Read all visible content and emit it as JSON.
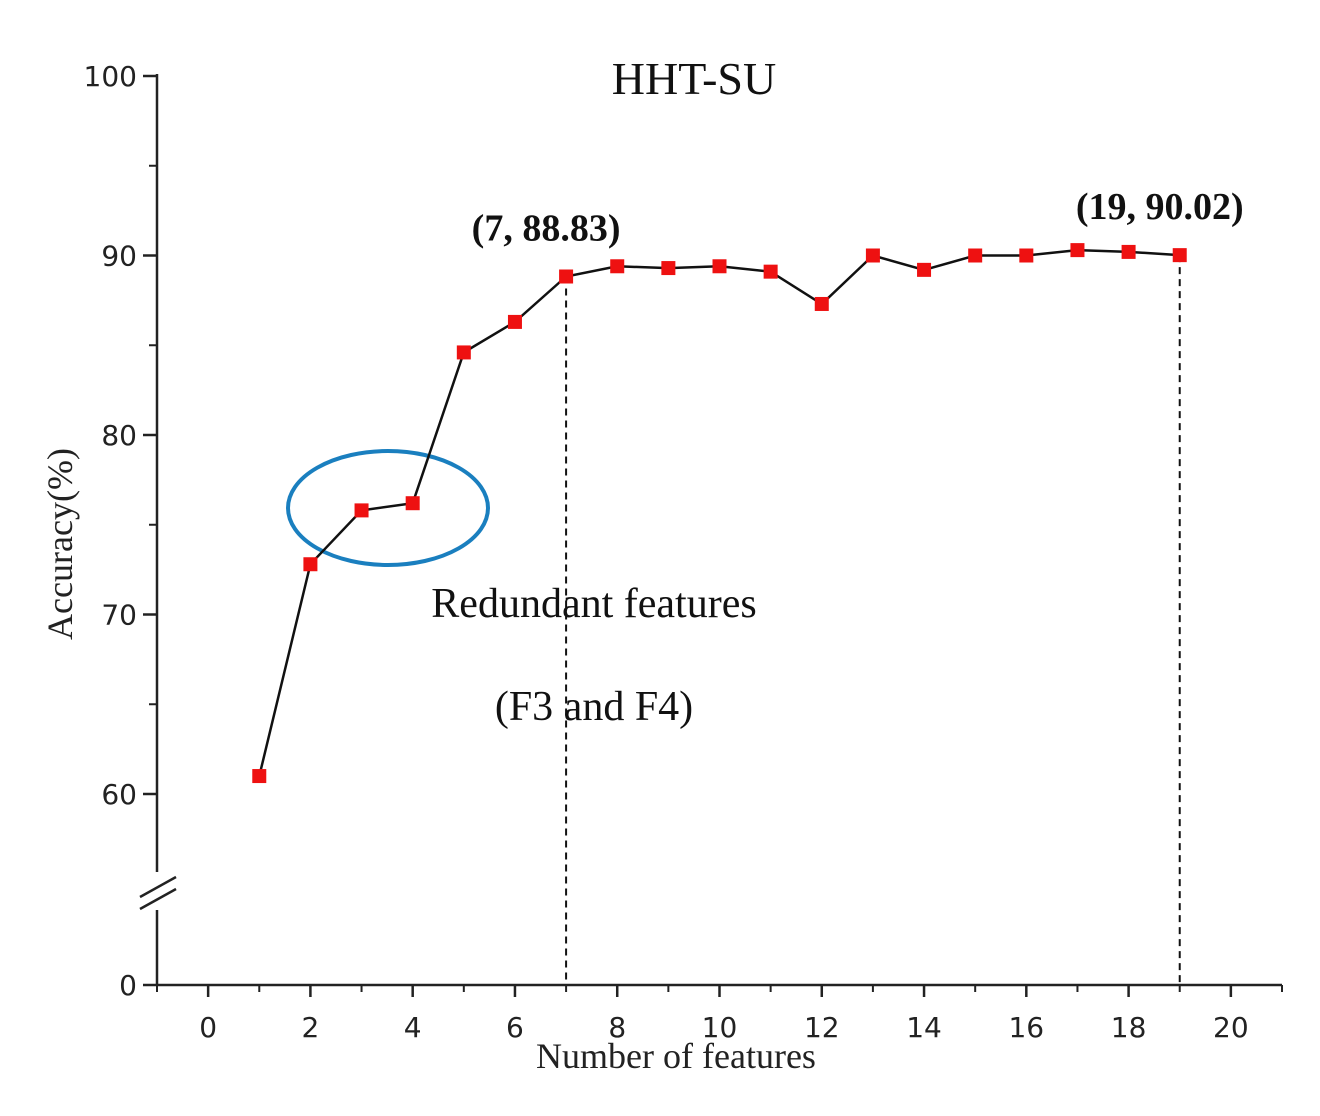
{
  "chart_data": {
    "type": "line",
    "title": "HHT-SU",
    "xlabel": "Number of features",
    "ylabel": "Accuracy(%)",
    "xlim": [
      -1,
      21
    ],
    "x_ticks": [
      0,
      2,
      4,
      6,
      8,
      10,
      12,
      14,
      16,
      18,
      20
    ],
    "y_ticks": [
      0,
      60,
      70,
      80,
      90,
      100
    ],
    "y_axis_break": "between 0 and 60",
    "grid": false,
    "series": [
      {
        "x": [
          1,
          2,
          3,
          4,
          5,
          6,
          7,
          8,
          9,
          10,
          11,
          12,
          13,
          14,
          15,
          16,
          17,
          18,
          19
        ],
        "values": [
          61.0,
          72.8,
          75.8,
          76.2,
          84.6,
          86.3,
          88.83,
          89.4,
          89.3,
          89.4,
          89.1,
          87.3,
          90.0,
          89.2,
          90.0,
          90.0,
          90.3,
          90.2,
          90.02
        ],
        "color": "#ee1111",
        "marker": "square"
      }
    ],
    "annotations": [
      {
        "text": "(7, 88.83)",
        "x": 7,
        "y": 88.83
      },
      {
        "text": "(19, 90.02)",
        "x": 19,
        "y": 90.02
      }
    ],
    "highlight_note": {
      "line1": "Redundant features",
      "line2": "(F3 and F4)",
      "ellipse_color": "#1a7fbf"
    },
    "reference_lines_x": [
      7,
      19
    ]
  }
}
